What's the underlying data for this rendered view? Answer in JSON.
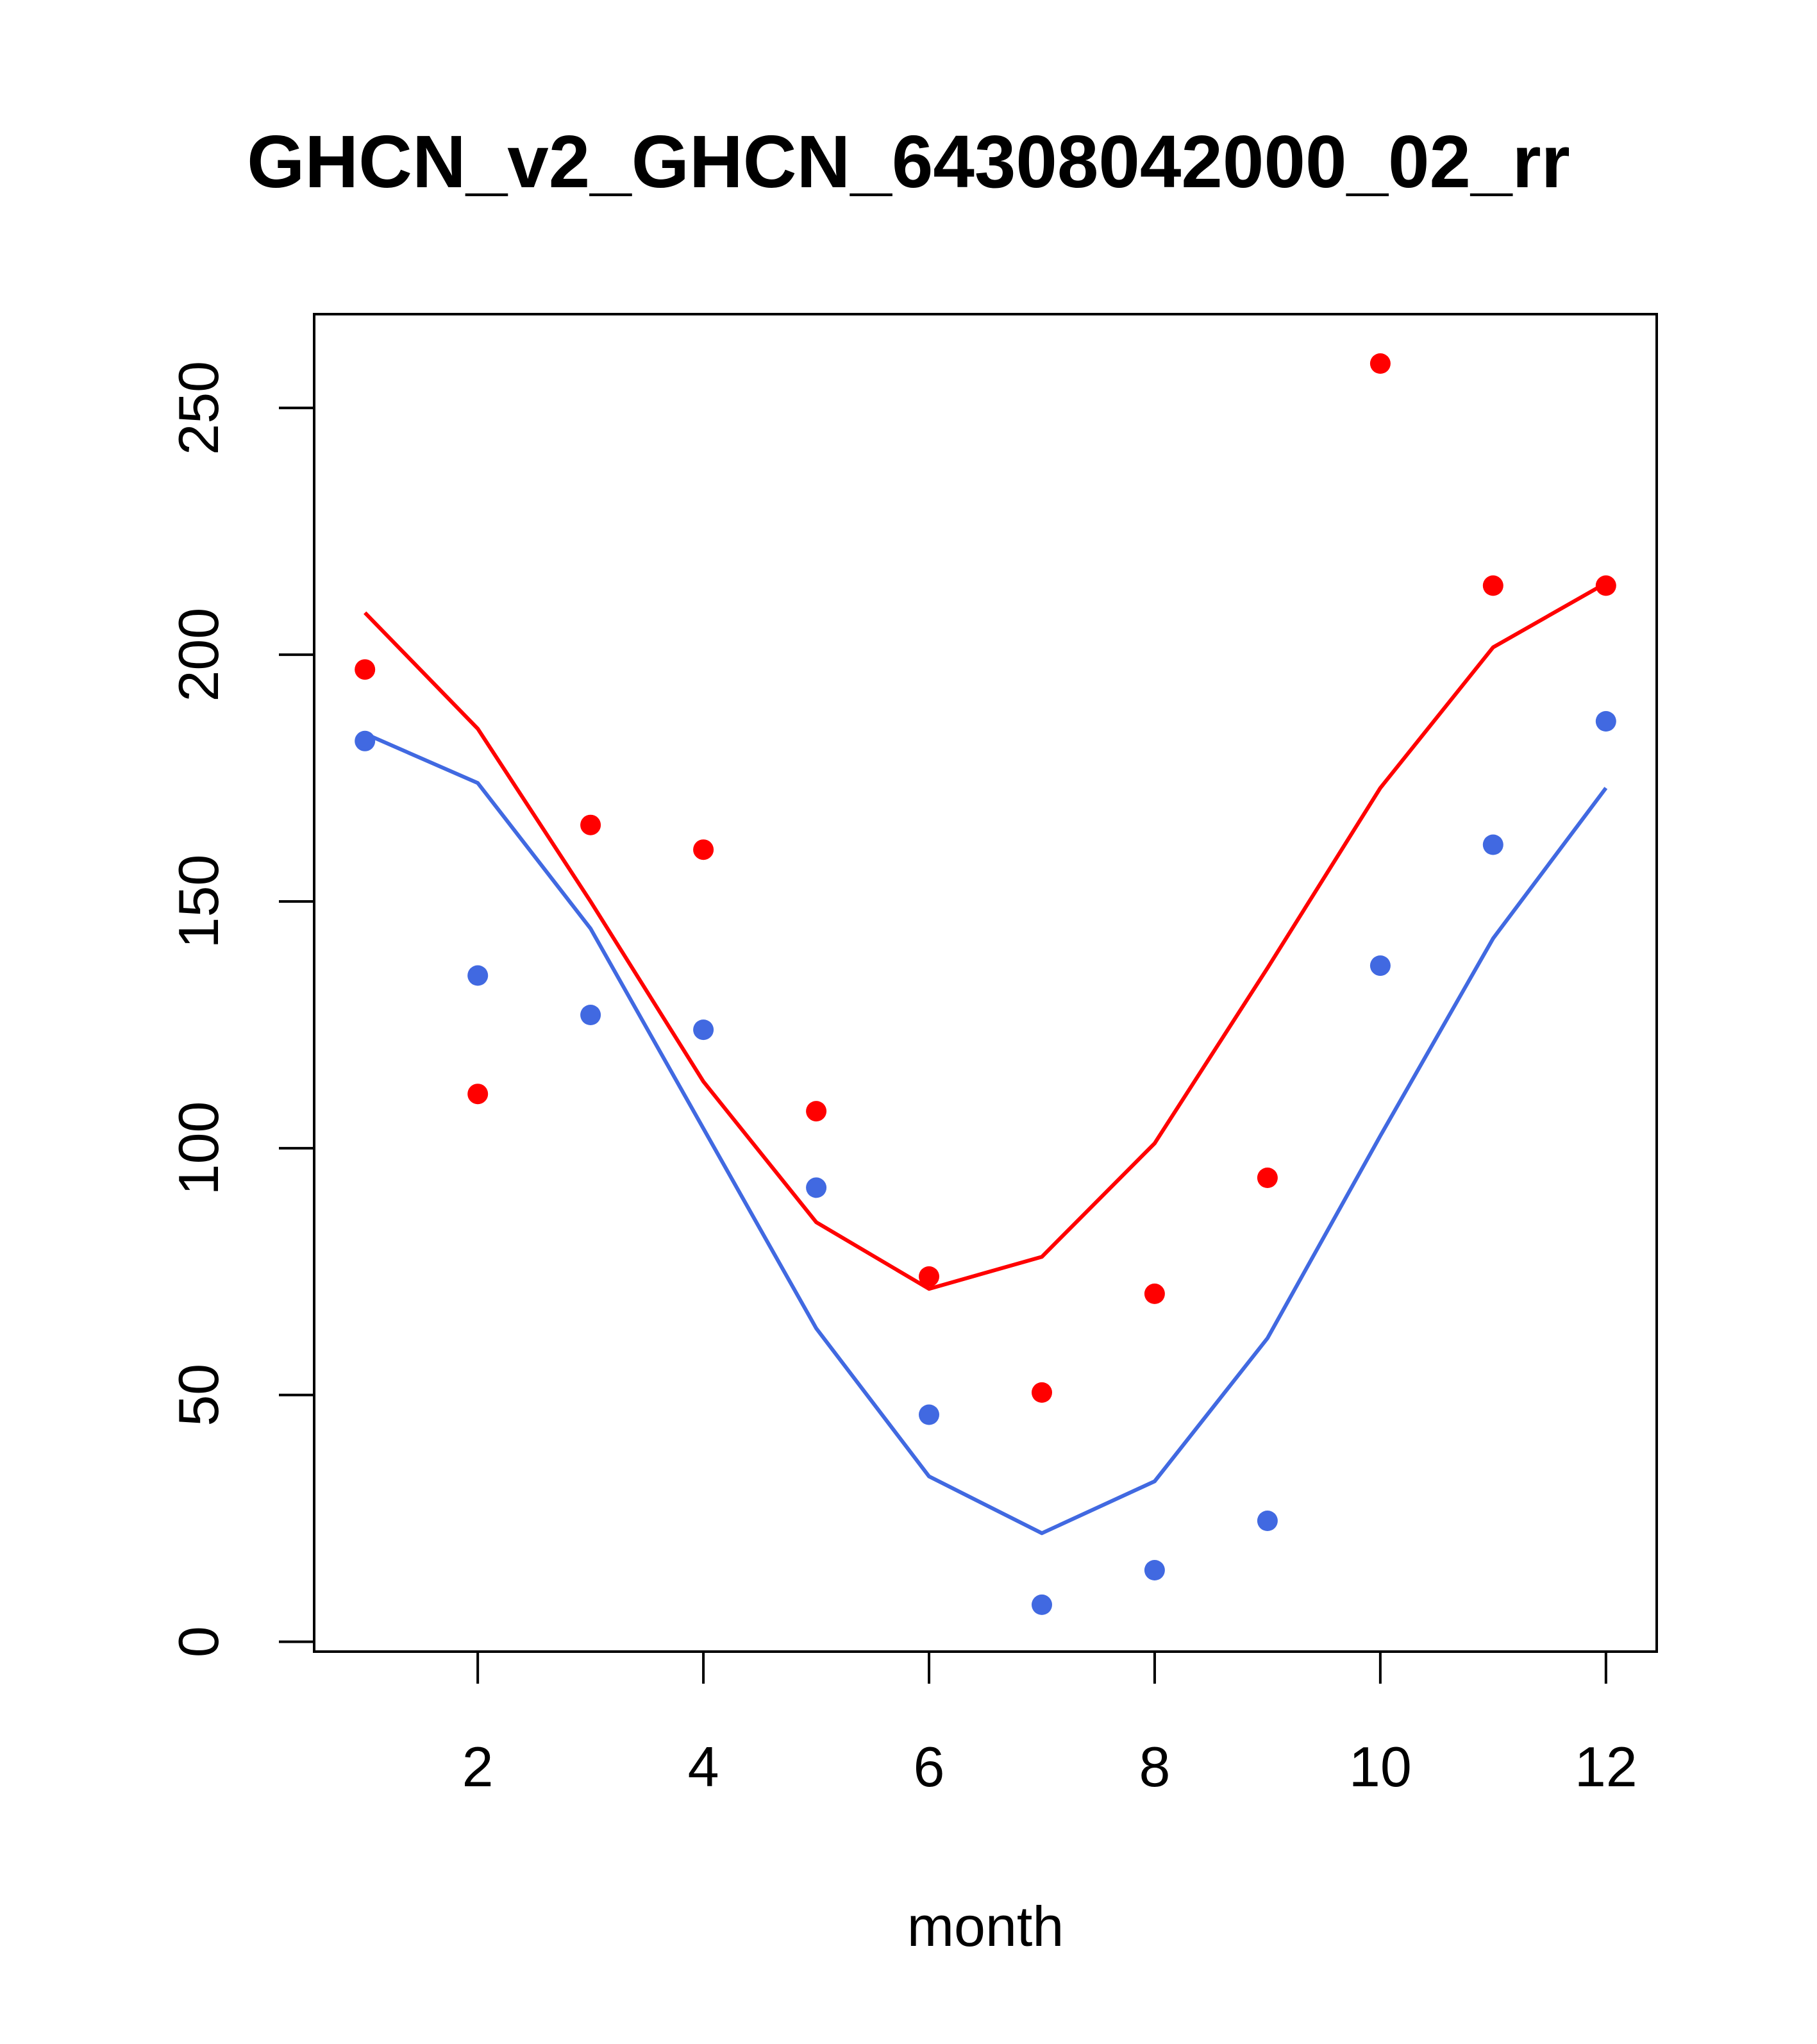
{
  "chart_data": {
    "type": "line",
    "title": "GHCN_v2_GHCN_64308042000_02_rr",
    "xlabel": "month",
    "ylabel": "",
    "xlim": [
      0.55,
      12.45
    ],
    "ylim": [
      -2,
      269
    ],
    "x_ticks": [
      2,
      4,
      6,
      8,
      10,
      12
    ],
    "x_tick_labels": [
      "2",
      "4",
      "6",
      "8",
      "10",
      "12"
    ],
    "y_ticks": [
      0,
      50,
      100,
      150,
      200,
      250
    ],
    "y_tick_labels": [
      "0",
      "50",
      "100",
      "150",
      "200",
      "250"
    ],
    "grid": false,
    "x": [
      1,
      2,
      3,
      4,
      5,
      6,
      7,
      8,
      9,
      10,
      11,
      12
    ],
    "series": [
      {
        "name": "red line",
        "kind": "line",
        "color": "#ff0000",
        "values": [
          208.5,
          185,
          150,
          113.5,
          85,
          71.5,
          78,
          101,
          136.5,
          173,
          201.5,
          214.5
        ]
      },
      {
        "name": "blue line",
        "kind": "line",
        "color": "#4169e1",
        "values": [
          184,
          174,
          144.5,
          104,
          63.5,
          33.5,
          22,
          32.5,
          61.5,
          102.5,
          142.5,
          173
        ]
      },
      {
        "name": "red points",
        "kind": "points",
        "color": "#ff0000",
        "values": [
          197,
          111,
          165.5,
          160.5,
          107.5,
          74,
          50.5,
          70.5,
          94,
          259,
          214,
          214
        ]
      },
      {
        "name": "blue points",
        "kind": "points",
        "color": "#4169e1",
        "values": [
          182.5,
          135,
          127,
          124,
          92,
          46,
          7.5,
          14.5,
          24.5,
          137,
          161.5,
          186.5
        ]
      }
    ]
  }
}
